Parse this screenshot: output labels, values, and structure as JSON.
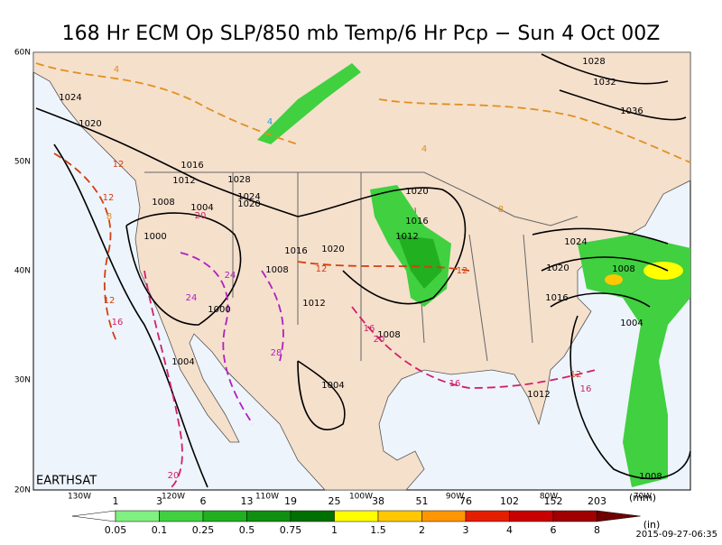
{
  "title": "168 Hr ECM Op SLP/850 mb Temp/6 Hr Pcp − Sun 4 Oct 00Z",
  "lat_labels": [
    "60N",
    "50N",
    "40N",
    "30N",
    "20N"
  ],
  "lon_labels": [
    "130W",
    "120W",
    "110W",
    "100W",
    "90W",
    "80W",
    "70W"
  ],
  "watermark": "EARTHSAT",
  "isobar_labels": [
    "1028",
    "1032",
    "1036",
    "1024",
    "1020",
    "1016",
    "1012",
    "1028",
    "1024",
    "1020",
    "1008",
    "1004",
    "1000",
    "1016",
    "1020",
    "1020",
    "1016",
    "1012",
    "1008",
    "1012",
    "1000",
    "1004",
    "1004",
    "1008",
    "1024",
    "1020",
    "1008",
    "1016",
    "1004",
    "1012",
    "1008"
  ],
  "temperature_labels": [
    "4",
    "4",
    "12",
    "12",
    "8",
    "20",
    "24",
    "24",
    "12",
    "12",
    "16",
    "20",
    "28",
    "16",
    "12",
    "16",
    "12",
    "16",
    "20",
    "4",
    "8"
  ],
  "colorbar": {
    "mm_labels": [
      "1",
      "3",
      "6",
      "13",
      "19",
      "25",
      "38",
      "51",
      "76",
      "102",
      "152",
      "203"
    ],
    "mm_unit": "(mm)",
    "inch_labels": [
      "0.05",
      "0.1",
      "0.25",
      "0.5",
      "0.75",
      "1",
      "1.5",
      "2",
      "3",
      "4",
      "6",
      "8"
    ],
    "inch_unit": "(in)",
    "colors": [
      "#ffffff",
      "#80f080",
      "#40d040",
      "#20b020",
      "#109010",
      "#007000",
      "#ffff00",
      "#ffc800",
      "#ff9600",
      "#e61e00",
      "#c80000",
      "#a00000",
      "#6e0000"
    ]
  },
  "timestamp": "2015-09-27-06:35"
}
